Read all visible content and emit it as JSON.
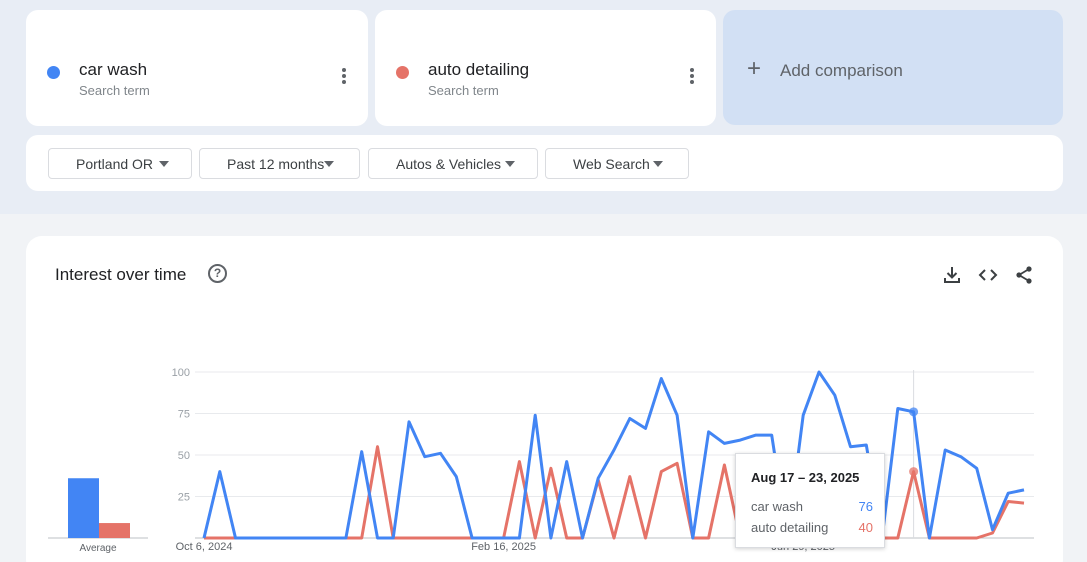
{
  "terms": [
    {
      "name": "car wash",
      "subtitle": "Search term",
      "color": "#4285f4"
    },
    {
      "name": "auto detailing",
      "subtitle": "Search term",
      "color": "#e57368"
    }
  ],
  "add_comparison": {
    "icon": "+",
    "label": "Add comparison"
  },
  "filters": [
    {
      "label": "Portland OR"
    },
    {
      "label": "Past 12 months"
    },
    {
      "label": "Autos & Vehicles"
    },
    {
      "label": "Web Search"
    }
  ],
  "section": {
    "title": "Interest over time",
    "help_icon": "?",
    "tools": [
      "download-icon",
      "embed-code-icon",
      "share-icon"
    ]
  },
  "tooltip": {
    "date": "Aug 17 – 23, 2025",
    "rows": [
      {
        "name": "car wash",
        "value": "76",
        "color": "#4285f4"
      },
      {
        "name": "auto detailing",
        "value": "40",
        "color": "#e57368"
      }
    ]
  },
  "chart_data": {
    "type": "line",
    "title": "Interest over time",
    "ylim": [
      0,
      100
    ],
    "yticks": [
      25,
      50,
      75,
      100
    ],
    "x_tick_labels": [
      {
        "label": "Oct 6, 2024",
        "index": 0
      },
      {
        "label": "Feb 16, 2025",
        "index": 19
      },
      {
        "label": "Jun 29, 2025",
        "index": 38
      }
    ],
    "series": [
      {
        "name": "car wash",
        "color": "#4285f4",
        "values": [
          0,
          40,
          0,
          0,
          0,
          0,
          0,
          0,
          0,
          0,
          52,
          0,
          0,
          70,
          49,
          51,
          37,
          0,
          0,
          0,
          0,
          74,
          0,
          46,
          0,
          36,
          53,
          72,
          66,
          96,
          74,
          0,
          64,
          57,
          59,
          62,
          62,
          0,
          74,
          100,
          86,
          55,
          56,
          0,
          78,
          76,
          0,
          53,
          49,
          42,
          5,
          27,
          29
        ]
      },
      {
        "name": "auto detailing",
        "color": "#e57368",
        "values": [
          0,
          0,
          0,
          0,
          0,
          0,
          0,
          0,
          0,
          0,
          0,
          55,
          0,
          0,
          0,
          0,
          0,
          0,
          0,
          0,
          46,
          0,
          42,
          0,
          0,
          35,
          0,
          37,
          0,
          40,
          45,
          0,
          0,
          44,
          0,
          0,
          37,
          0,
          0,
          0,
          0,
          0,
          0,
          0,
          0,
          40,
          0,
          0,
          0,
          0,
          3,
          22,
          21
        ]
      }
    ],
    "averages": [
      {
        "name": "car wash",
        "value": 36,
        "color": "#4285f4"
      },
      {
        "name": "auto detailing",
        "value": 9,
        "color": "#e57368"
      }
    ],
    "average_label": "Average",
    "highlight_index": 45
  }
}
